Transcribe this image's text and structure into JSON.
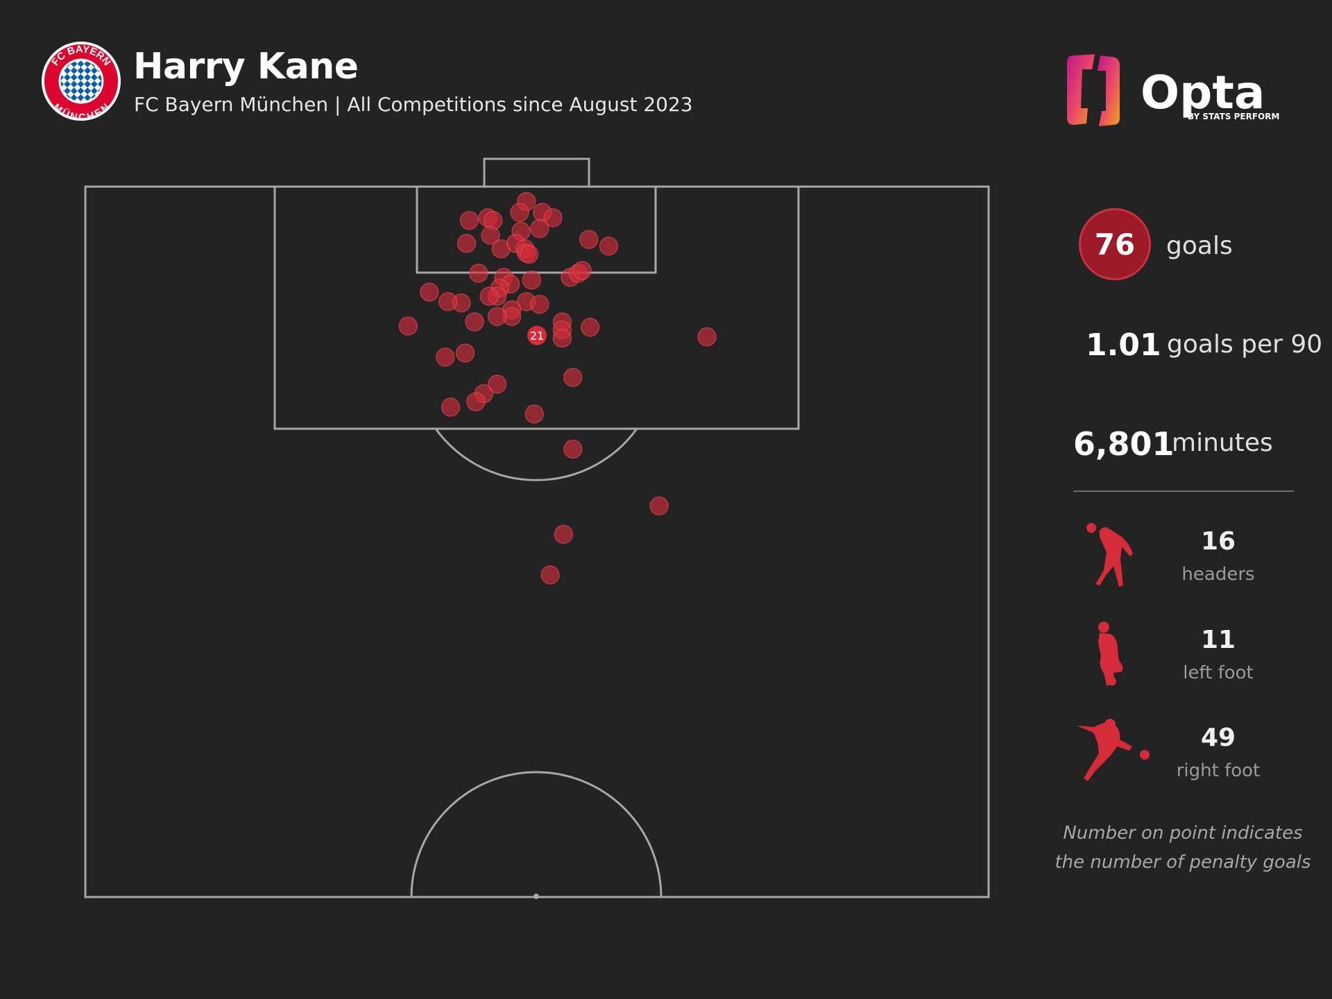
{
  "header": {
    "player_name": "Harry Kane",
    "subtitle": "FC Bayern München | All Competitions since August 2023",
    "crest_text": "FC BAYERN MÜNCHEN",
    "brand": "Opta",
    "brand_tagline": "BY STATS PERFORM"
  },
  "stats": {
    "goals": "76",
    "goals_label": "goals",
    "goals_per_90": "1.01",
    "goals_per_90_label": "goals per 90",
    "minutes": "6,801",
    "minutes_label": "minutes"
  },
  "breakdown": [
    {
      "count": "16",
      "label": "headers",
      "icon": "header-figure-icon"
    },
    {
      "count": "11",
      "label": "left foot",
      "icon": "left-foot-figure-icon"
    },
    {
      "count": "49",
      "label": "right foot",
      "icon": "right-foot-figure-icon"
    }
  ],
  "note": {
    "line1": "Number on point indicates",
    "line2": "the number of penalty goals"
  },
  "colors": {
    "background": "#232323",
    "accent_red": "#d62c3a",
    "goal_circle": "#9c1a28",
    "pitch_lines": "#a8a8a8"
  },
  "chart_data": {
    "type": "scatter",
    "description_units": "pitch coordinates in metres: x across width (0-68), y distance from goal line (0-52.5)",
    "xlim": [
      0,
      68
    ],
    "ylim": [
      0,
      52.5
    ],
    "penalty_point": {
      "x": 34,
      "y": 11,
      "label": "21"
    },
    "points": [
      {
        "x": 33.2,
        "y": 1.1
      },
      {
        "x": 34.4,
        "y": 1.9
      },
      {
        "x": 35.2,
        "y": 2.3
      },
      {
        "x": 32.7,
        "y": 1.9
      },
      {
        "x": 28.9,
        "y": 2.5
      },
      {
        "x": 30.3,
        "y": 2.3
      },
      {
        "x": 30.7,
        "y": 2.5
      },
      {
        "x": 34.2,
        "y": 3.1
      },
      {
        "x": 32.8,
        "y": 3.3
      },
      {
        "x": 30.5,
        "y": 3.6
      },
      {
        "x": 28.7,
        "y": 4.2
      },
      {
        "x": 37.9,
        "y": 3.9
      },
      {
        "x": 39.4,
        "y": 4.4
      },
      {
        "x": 31.3,
        "y": 4.6
      },
      {
        "x": 32.4,
        "y": 4.2
      },
      {
        "x": 33.1,
        "y": 4.6
      },
      {
        "x": 33.2,
        "y": 4.9
      },
      {
        "x": 33.4,
        "y": 5.0
      },
      {
        "x": 29.6,
        "y": 6.4
      },
      {
        "x": 33.6,
        "y": 6.9
      },
      {
        "x": 31.5,
        "y": 6.7
      },
      {
        "x": 36.5,
        "y": 6.7
      },
      {
        "x": 37.1,
        "y": 6.4
      },
      {
        "x": 37.4,
        "y": 6.2
      },
      {
        "x": 32.0,
        "y": 7.2
      },
      {
        "x": 31.2,
        "y": 7.5
      },
      {
        "x": 31.0,
        "y": 8.1
      },
      {
        "x": 30.4,
        "y": 8.1
      },
      {
        "x": 28.3,
        "y": 8.6
      },
      {
        "x": 25.9,
        "y": 7.8
      },
      {
        "x": 27.3,
        "y": 8.5
      },
      {
        "x": 33.2,
        "y": 8.5
      },
      {
        "x": 34.2,
        "y": 8.7
      },
      {
        "x": 32.1,
        "y": 9.1
      },
      {
        "x": 32.1,
        "y": 9.6
      },
      {
        "x": 31.0,
        "y": 9.6
      },
      {
        "x": 29.3,
        "y": 10.0
      },
      {
        "x": 35.9,
        "y": 10.0
      },
      {
        "x": 35.9,
        "y": 10.6
      },
      {
        "x": 35.9,
        "y": 11.2
      },
      {
        "x": 38.0,
        "y": 10.4
      },
      {
        "x": 24.3,
        "y": 10.3
      },
      {
        "x": 46.8,
        "y": 11.1
      },
      {
        "x": 28.6,
        "y": 12.3
      },
      {
        "x": 27.1,
        "y": 12.6
      },
      {
        "x": 36.7,
        "y": 14.1
      },
      {
        "x": 31.0,
        "y": 14.6
      },
      {
        "x": 30.0,
        "y": 15.3
      },
      {
        "x": 29.4,
        "y": 15.9
      },
      {
        "x": 27.5,
        "y": 16.3
      },
      {
        "x": 33.8,
        "y": 16.8
      },
      {
        "x": 36.7,
        "y": 19.4
      },
      {
        "x": 43.2,
        "y": 23.6
      },
      {
        "x": 36.0,
        "y": 25.7
      },
      {
        "x": 35.0,
        "y": 28.7
      }
    ]
  }
}
